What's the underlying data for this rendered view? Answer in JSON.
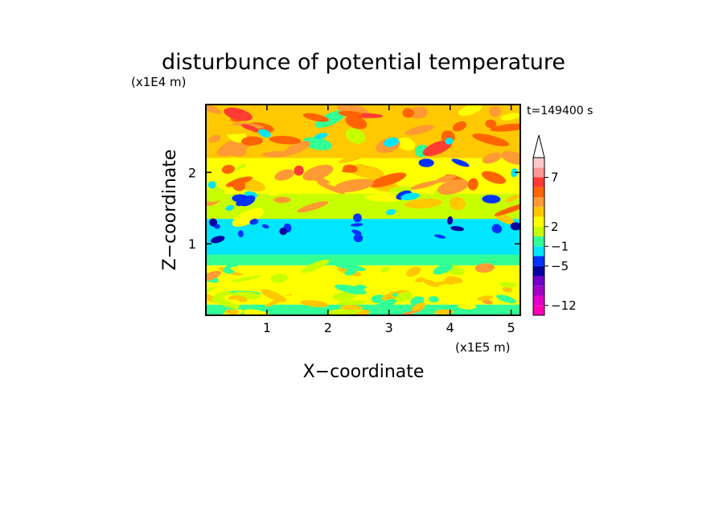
{
  "chart_data": {
    "type": "heatmap",
    "title": "disturbunce of potential temperature",
    "z_unit_label": "(x1E4 m)",
    "x_unit_label": "(x1E5 m)",
    "xlabel": "X−coordinate",
    "ylabel": "Z−coordinate",
    "time_label": "t=149400 s",
    "xlim": [
      0,
      5.15
    ],
    "ylim": [
      0,
      2.95
    ],
    "x_ticks": [
      {
        "value": 1,
        "label": "1"
      },
      {
        "value": 2,
        "label": "2"
      },
      {
        "value": 3,
        "label": "3"
      },
      {
        "value": 4,
        "label": "4"
      },
      {
        "value": 5,
        "label": "5"
      }
    ],
    "y_ticks": [
      {
        "value": 1,
        "label": "1"
      },
      {
        "value": 2,
        "label": "2"
      }
    ],
    "colorbar": {
      "extend": "max",
      "levels": [
        {
          "color": "#ff00b4"
        },
        {
          "color": "#e100c8"
        },
        {
          "color": "#a000c8"
        },
        {
          "color": "#6e00c8"
        },
        {
          "color": "#0000a0"
        },
        {
          "color": "#0032ff"
        },
        {
          "color": "#00e6ff"
        },
        {
          "color": "#32ff96"
        },
        {
          "color": "#c8ff00"
        },
        {
          "color": "#ffff00"
        },
        {
          "color": "#ffc800"
        },
        {
          "color": "#ff9b32"
        },
        {
          "color": "#ff6400"
        },
        {
          "color": "#ff3c32"
        },
        {
          "color": "#ff9696"
        },
        {
          "color": "#ffc8c8"
        }
      ],
      "tick_labels": [
        {
          "after_index": 0,
          "label": "−12"
        },
        {
          "after_index": 4,
          "label": "−5"
        },
        {
          "after_index": 6,
          "label": "−1"
        },
        {
          "after_index": 8,
          "label": "2"
        },
        {
          "after_index": 13,
          "label": "7"
        }
      ]
    },
    "field_description_layers": [
      {
        "z_range": [
          0.0,
          0.15
        ],
        "level": 7
      },
      {
        "z_range": [
          0.15,
          0.7
        ],
        "level": 9
      },
      {
        "z_range": [
          0.7,
          0.85
        ],
        "level": 7
      },
      {
        "z_range": [
          0.85,
          1.35
        ],
        "level": 6
      },
      {
        "z_range": [
          1.35,
          1.7
        ],
        "level": 8
      },
      {
        "z_range": [
          1.7,
          2.2
        ],
        "level": 9
      },
      {
        "z_range": [
          2.2,
          2.95
        ],
        "level": 10
      }
    ]
  }
}
